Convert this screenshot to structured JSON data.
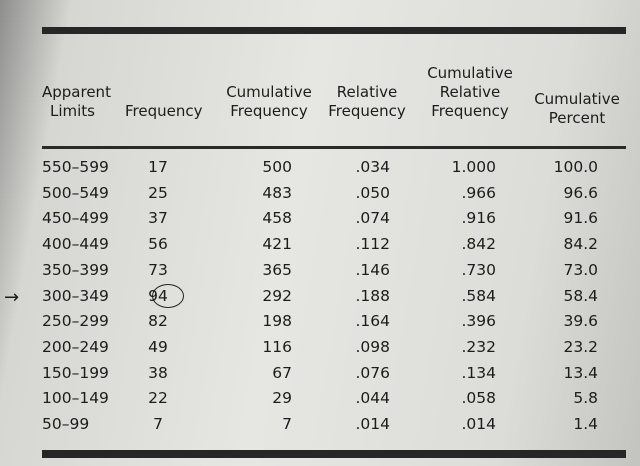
{
  "headers": {
    "apparent_limits": [
      "Apparent",
      "Limits"
    ],
    "frequency": "Frequency",
    "cumulative_frequency": [
      "Cumulative",
      "Frequency"
    ],
    "relative_frequency": [
      "Relative",
      "Frequency"
    ],
    "cumulative_relative_frequency": [
      "Cumulative",
      "Relative",
      "Frequency"
    ],
    "cumulative_percent": [
      "Cumulative",
      "Percent"
    ]
  },
  "rows": [
    {
      "limits": "550–599",
      "freq": "17",
      "cum_freq": "500",
      "rel_freq": ".034",
      "cum_rel": "1.000",
      "cum_pct": "100.0"
    },
    {
      "limits": "500–549",
      "freq": "25",
      "cum_freq": "483",
      "rel_freq": ".050",
      "cum_rel": ".966",
      "cum_pct": "96.6"
    },
    {
      "limits": "450–499",
      "freq": "37",
      "cum_freq": "458",
      "rel_freq": ".074",
      "cum_rel": ".916",
      "cum_pct": "91.6"
    },
    {
      "limits": "400–449",
      "freq": "56",
      "cum_freq": "421",
      "rel_freq": ".112",
      "cum_rel": ".842",
      "cum_pct": "84.2"
    },
    {
      "limits": "350–399",
      "freq": "73",
      "cum_freq": "365",
      "rel_freq": ".146",
      "cum_rel": ".730",
      "cum_pct": "73.0"
    },
    {
      "limits": "300–349",
      "freq": "94",
      "cum_freq": "292",
      "rel_freq": ".188",
      "cum_rel": ".584",
      "cum_pct": "58.4"
    },
    {
      "limits": "250–299",
      "freq": "82",
      "cum_freq": "198",
      "rel_freq": ".164",
      "cum_rel": ".396",
      "cum_pct": "39.6"
    },
    {
      "limits": "200–249",
      "freq": "49",
      "cum_freq": "116",
      "rel_freq": ".098",
      "cum_rel": ".232",
      "cum_pct": "23.2"
    },
    {
      "limits": "150–199",
      "freq": "38",
      "cum_freq": "67",
      "rel_freq": ".076",
      "cum_rel": ".134",
      "cum_pct": "13.4"
    },
    {
      "limits": "100–149",
      "freq": "22",
      "cum_freq": "29",
      "rel_freq": ".044",
      "cum_rel": ".058",
      "cum_pct": "5.8"
    },
    {
      "limits": "50–99",
      "freq": "7",
      "cum_freq": "7",
      "rel_freq": ".014",
      "cum_rel": ".014",
      "cum_pct": "1.4"
    }
  ],
  "annotations": {
    "arrow_glyph": "→",
    "arrow_row_index": 5,
    "circled_cell": "rows.5.freq"
  }
}
